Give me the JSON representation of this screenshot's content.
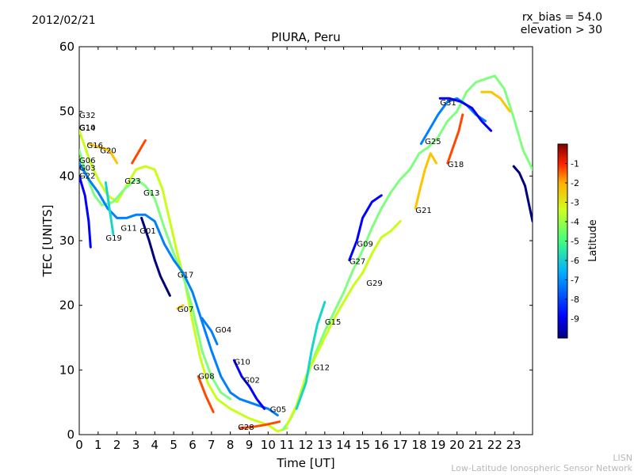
{
  "header": {
    "date": "2012/02/21",
    "rx_bias": "rx_bias = 54.0",
    "elevation": "elevation > 30"
  },
  "footer": {
    "org_short": "LISN",
    "org_long": "Low-Latitude Ionospheric Sensor Network"
  },
  "chart_data": {
    "type": "scatter",
    "title": "PIURA, Peru",
    "xlabel": "Time [UT]",
    "ylabel": "TEC [UNITS]",
    "xlim": [
      0,
      24
    ],
    "ylim": [
      0,
      60
    ],
    "xticks": [
      0,
      1,
      2,
      3,
      4,
      5,
      6,
      7,
      8,
      9,
      10,
      11,
      12,
      13,
      14,
      15,
      16,
      17,
      18,
      19,
      20,
      21,
      22,
      23
    ],
    "yticks": [
      0,
      10,
      20,
      30,
      40,
      50,
      60
    ],
    "colorbar": {
      "label": "Latitude",
      "range": [
        -10,
        0
      ],
      "ticks": [
        -9,
        -8,
        -7,
        -6,
        -5,
        -4,
        -3,
        -2,
        -1
      ],
      "colors": [
        "#00007f",
        "#0000ff",
        "#0080ff",
        "#16d5c9",
        "#7fff7f",
        "#c9ff16",
        "#ffc400",
        "#ff4800",
        "#7f0000"
      ]
    },
    "satellite_labels": [
      {
        "text": "G32",
        "x": 0.0,
        "y": 49.5
      },
      {
        "text": "G14",
        "x": 0.0,
        "y": 47.5
      },
      {
        "text": "G10",
        "x": 0.0,
        "y": 47.6
      },
      {
        "text": "G16",
        "x": 0.4,
        "y": 44.8
      },
      {
        "text": "G20",
        "x": 1.1,
        "y": 44.0
      },
      {
        "text": "G06",
        "x": 0.0,
        "y": 42.5
      },
      {
        "text": "G03",
        "x": 0.0,
        "y": 41.3
      },
      {
        "text": "G22",
        "x": 0.0,
        "y": 40.1
      },
      {
        "text": "G23",
        "x": 2.4,
        "y": 39.3
      },
      {
        "text": "G13",
        "x": 3.4,
        "y": 37.5
      },
      {
        "text": "G11",
        "x": 2.2,
        "y": 32.0
      },
      {
        "text": "G01",
        "x": 3.2,
        "y": 31.6
      },
      {
        "text": "G19",
        "x": 1.4,
        "y": 30.5
      },
      {
        "text": "G17",
        "x": 5.2,
        "y": 24.8
      },
      {
        "text": "G07",
        "x": 5.2,
        "y": 19.5
      },
      {
        "text": "G04",
        "x": 7.2,
        "y": 16.3
      },
      {
        "text": "G10",
        "x": 8.2,
        "y": 11.3
      },
      {
        "text": "G02",
        "x": 8.7,
        "y": 8.5
      },
      {
        "text": "G08",
        "x": 6.3,
        "y": 9.1
      },
      {
        "text": "G05",
        "x": 10.1,
        "y": 4.0
      },
      {
        "text": "G28",
        "x": 8.4,
        "y": 1.2
      },
      {
        "text": "G12",
        "x": 12.4,
        "y": 10.5
      },
      {
        "text": "G15",
        "x": 13.0,
        "y": 17.5
      },
      {
        "text": "G27",
        "x": 14.3,
        "y": 26.9
      },
      {
        "text": "G09",
        "x": 14.7,
        "y": 29.6
      },
      {
        "text": "G29",
        "x": 15.2,
        "y": 23.5
      },
      {
        "text": "G21",
        "x": 17.8,
        "y": 34.8
      },
      {
        "text": "G25",
        "x": 18.3,
        "y": 45.4
      },
      {
        "text": "G18",
        "x": 19.5,
        "y": 41.9
      },
      {
        "text": "G31",
        "x": 19.1,
        "y": 51.4
      }
    ],
    "series": [
      {
        "name": "track-a",
        "lat": -4.0,
        "points": [
          [
            0.0,
            47.0
          ],
          [
            0.3,
            44.5
          ],
          [
            0.6,
            42.0
          ],
          [
            1.0,
            39.5
          ],
          [
            1.5,
            37.0
          ],
          [
            2.0,
            36.0
          ],
          [
            2.5,
            38.5
          ],
          [
            3.0,
            41.0
          ],
          [
            3.5,
            41.5
          ],
          [
            4.0,
            41.0
          ],
          [
            4.4,
            38.0
          ],
          [
            4.8,
            33.0
          ],
          [
            5.2,
            28.0
          ],
          [
            5.6,
            23.5
          ],
          [
            6.0,
            17.5
          ],
          [
            6.4,
            12.0
          ],
          [
            6.8,
            8.0
          ],
          [
            7.3,
            5.5
          ],
          [
            8.0,
            4.0
          ],
          [
            9.0,
            2.5
          ],
          [
            10.0,
            1.5
          ],
          [
            10.5,
            0.5
          ],
          [
            11.0,
            1.0
          ]
        ]
      },
      {
        "name": "track-b",
        "lat": -5.5,
        "points": [
          [
            0.0,
            44.0
          ],
          [
            0.4,
            40.0
          ],
          [
            0.8,
            37.0
          ],
          [
            1.2,
            35.5
          ],
          [
            1.8,
            36.0
          ],
          [
            2.4,
            38.0
          ],
          [
            3.0,
            39.5
          ],
          [
            3.5,
            38.5
          ],
          [
            4.0,
            36.5
          ],
          [
            4.5,
            32.0
          ],
          [
            5.0,
            28.0
          ],
          [
            5.5,
            24.5
          ],
          [
            6.0,
            19.5
          ],
          [
            6.5,
            13.0
          ],
          [
            7.0,
            9.0
          ],
          [
            7.5,
            6.5
          ],
          [
            8.0,
            5.5
          ]
        ]
      },
      {
        "name": "track-c",
        "lat": -7.5,
        "points": [
          [
            0.0,
            42.0
          ],
          [
            0.5,
            39.5
          ],
          [
            1.0,
            37.5
          ],
          [
            1.5,
            35.0
          ],
          [
            2.0,
            33.5
          ],
          [
            2.5,
            33.5
          ],
          [
            3.0,
            34.0
          ],
          [
            3.5,
            34.0
          ],
          [
            4.0,
            33.0
          ],
          [
            4.5,
            29.5
          ],
          [
            5.0,
            27.0
          ],
          [
            5.5,
            25.0
          ],
          [
            6.0,
            22.0
          ],
          [
            6.5,
            17.5
          ],
          [
            7.0,
            13.0
          ],
          [
            7.5,
            9.0
          ],
          [
            8.0,
            6.5
          ],
          [
            8.5,
            5.5
          ],
          [
            9.0,
            5.0
          ],
          [
            9.5,
            4.5
          ],
          [
            10.0,
            4.0
          ],
          [
            10.5,
            3.0
          ]
        ]
      },
      {
        "name": "track-d",
        "lat": -8.5,
        "points": [
          [
            0.0,
            40.0
          ],
          [
            0.3,
            37.0
          ],
          [
            0.5,
            33.0
          ],
          [
            0.6,
            29.0
          ]
        ]
      },
      {
        "name": "track-e",
        "lat": -9.5,
        "points": [
          [
            3.3,
            33.5
          ],
          [
            3.7,
            30.0
          ],
          [
            4.0,
            27.0
          ],
          [
            4.3,
            24.5
          ],
          [
            4.8,
            21.5
          ]
        ]
      },
      {
        "name": "track-f",
        "lat": -6.5,
        "points": [
          [
            1.4,
            39.0
          ],
          [
            1.6,
            35.0
          ],
          [
            1.8,
            31.0
          ]
        ]
      },
      {
        "name": "track-g",
        "lat": -1.5,
        "points": [
          [
            2.8,
            42.0
          ],
          [
            3.1,
            43.5
          ],
          [
            3.5,
            45.5
          ]
        ]
      },
      {
        "name": "track-h",
        "lat": -3.0,
        "points": [
          [
            0.5,
            45.0
          ],
          [
            1.0,
            44.5
          ],
          [
            1.6,
            44.0
          ],
          [
            2.0,
            42.0
          ]
        ]
      },
      {
        "name": "track-i",
        "lat": -8.0,
        "points": [
          [
            6.5,
            18.0
          ],
          [
            7.0,
            16.0
          ],
          [
            7.3,
            14.0
          ]
        ]
      },
      {
        "name": "track-j",
        "lat": -9.0,
        "points": [
          [
            8.2,
            11.5
          ],
          [
            8.6,
            9.0
          ],
          [
            9.0,
            7.5
          ],
          [
            9.4,
            5.5
          ],
          [
            9.8,
            4.0
          ]
        ]
      },
      {
        "name": "track-k",
        "lat": -1.0,
        "points": [
          [
            6.3,
            9.0
          ],
          [
            6.7,
            6.0
          ],
          [
            7.1,
            3.5
          ]
        ]
      },
      {
        "name": "track-l",
        "lat": -1.5,
        "points": [
          [
            8.5,
            1.0
          ],
          [
            9.2,
            1.2
          ],
          [
            9.8,
            1.5
          ],
          [
            10.3,
            1.8
          ],
          [
            10.6,
            2.0
          ]
        ]
      },
      {
        "name": "track-m",
        "lat": -2.0,
        "points": [
          [
            5.2,
            19.5
          ],
          [
            5.5,
            20.0
          ]
        ]
      },
      {
        "name": "track-n",
        "lat": -5.0,
        "points": [
          [
            10.8,
            0.8
          ],
          [
            11.2,
            2.5
          ],
          [
            11.6,
            5.0
          ],
          [
            12.0,
            8.5
          ],
          [
            12.5,
            12.5
          ],
          [
            13.0,
            16.0
          ],
          [
            13.5,
            19.0
          ],
          [
            14.0,
            22.0
          ],
          [
            14.5,
            25.5
          ],
          [
            15.0,
            28.5
          ],
          [
            15.5,
            32.0
          ],
          [
            16.0,
            35.0
          ],
          [
            16.5,
            37.5
          ],
          [
            17.0,
            39.5
          ],
          [
            17.5,
            41.0
          ],
          [
            18.0,
            43.5
          ],
          [
            18.5,
            44.5
          ],
          [
            19.0,
            46.0
          ],
          [
            19.5,
            48.5
          ],
          [
            20.0,
            50.0
          ],
          [
            20.5,
            53.0
          ],
          [
            21.0,
            54.5
          ],
          [
            21.5,
            55.0
          ],
          [
            22.0,
            55.5
          ],
          [
            22.5,
            53.5
          ],
          [
            23.0,
            49.0
          ],
          [
            23.5,
            44.0
          ],
          [
            24.0,
            41.0
          ]
        ]
      },
      {
        "name": "track-o",
        "lat": -3.5,
        "points": [
          [
            11.0,
            1.5
          ],
          [
            11.5,
            4.5
          ],
          [
            12.0,
            9.0
          ],
          [
            12.5,
            12.0
          ],
          [
            13.0,
            15.0
          ],
          [
            13.5,
            18.0
          ],
          [
            14.0,
            20.5
          ],
          [
            14.5,
            23.0
          ],
          [
            15.0,
            25.0
          ],
          [
            15.5,
            28.0
          ],
          [
            16.0,
            30.5
          ],
          [
            16.5,
            31.5
          ],
          [
            17.0,
            33.0
          ]
        ]
      },
      {
        "name": "track-p",
        "lat": -6.0,
        "points": [
          [
            11.5,
            4.0
          ],
          [
            12.0,
            8.0
          ],
          [
            12.3,
            13.0
          ],
          [
            12.6,
            17.0
          ],
          [
            13.0,
            20.5
          ]
        ]
      },
      {
        "name": "track-q",
        "lat": -9.0,
        "points": [
          [
            14.3,
            27.0
          ],
          [
            14.7,
            30.0
          ],
          [
            15.0,
            33.5
          ],
          [
            15.5,
            36.0
          ],
          [
            16.0,
            37.0
          ]
        ]
      },
      {
        "name": "track-r",
        "lat": -7.0,
        "points": [
          [
            18.1,
            45.0
          ],
          [
            18.5,
            47.0
          ],
          [
            19.0,
            49.5
          ],
          [
            19.5,
            51.5
          ],
          [
            20.0,
            52.0
          ],
          [
            20.5,
            51.0
          ],
          [
            21.0,
            49.5
          ],
          [
            21.5,
            48.5
          ]
        ]
      },
      {
        "name": "track-s",
        "lat": -8.5,
        "points": [
          [
            19.1,
            52.0
          ],
          [
            19.6,
            52.0
          ],
          [
            20.2,
            51.5
          ],
          [
            20.8,
            50.5
          ],
          [
            21.3,
            48.5
          ],
          [
            21.8,
            47.0
          ]
        ]
      },
      {
        "name": "track-t",
        "lat": -1.5,
        "points": [
          [
            19.5,
            42.0
          ],
          [
            19.8,
            44.5
          ],
          [
            20.1,
            47.0
          ],
          [
            20.3,
            49.5
          ]
        ]
      },
      {
        "name": "track-u",
        "lat": -2.0,
        "points": [
          [
            17.8,
            35.0
          ],
          [
            18.0,
            37.5
          ],
          [
            18.3,
            41.0
          ],
          [
            18.6,
            43.5
          ],
          [
            18.9,
            42.0
          ]
        ]
      },
      {
        "name": "track-v",
        "lat": -9.5,
        "points": [
          [
            23.0,
            41.5
          ],
          [
            23.3,
            40.5
          ],
          [
            23.6,
            38.5
          ],
          [
            24.0,
            33.0
          ]
        ]
      },
      {
        "name": "track-w",
        "lat": -2.5,
        "points": [
          [
            21.3,
            53.0
          ],
          [
            21.8,
            53.0
          ],
          [
            22.3,
            52.0
          ],
          [
            22.8,
            50.0
          ]
        ]
      }
    ]
  }
}
